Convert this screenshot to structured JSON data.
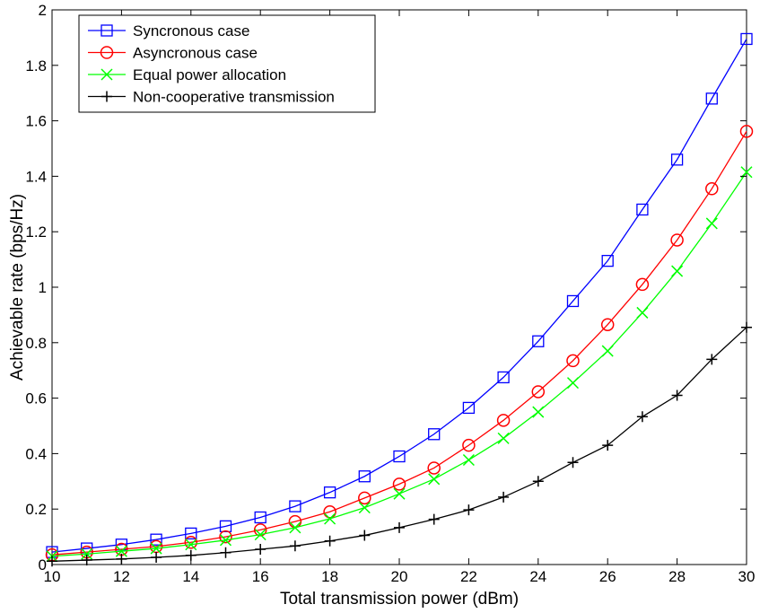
{
  "chart_data": {
    "type": "line",
    "title": "",
    "xlabel": "Total transmission power (dBm)",
    "ylabel": "Achievable rate (bps/Hz)",
    "xlim": [
      10,
      30
    ],
    "ylim": [
      0,
      2
    ],
    "xticks": [
      "10",
      "12",
      "14",
      "16",
      "18",
      "20",
      "22",
      "24",
      "26",
      "28",
      "30"
    ],
    "yticks": [
      "0",
      "0.2",
      "0.4",
      "0.6",
      "0.8",
      "1",
      "1.2",
      "1.4",
      "1.6",
      "1.8",
      "2"
    ],
    "grid": false,
    "legend_position": "top-left",
    "x": [
      10,
      11,
      12,
      13,
      14,
      15,
      16,
      17,
      18,
      19,
      20,
      21,
      22,
      23,
      24,
      25,
      26,
      27,
      28,
      29,
      30
    ],
    "series": [
      {
        "name": "Syncronous case",
        "color": "#0000ff",
        "marker": "square",
        "values": [
          0.045,
          0.058,
          0.072,
          0.09,
          0.112,
          0.138,
          0.17,
          0.21,
          0.26,
          0.318,
          0.39,
          0.47,
          0.565,
          0.675,
          0.805,
          0.95,
          1.095,
          1.28,
          1.46,
          1.68,
          1.895
        ]
      },
      {
        "name": "Asyncronous case",
        "color": "#ff0000",
        "marker": "circle",
        "values": [
          0.035,
          0.045,
          0.055,
          0.065,
          0.08,
          0.1,
          0.125,
          0.155,
          0.19,
          0.24,
          0.29,
          0.348,
          0.43,
          0.52,
          0.623,
          0.735,
          0.865,
          1.01,
          1.17,
          1.355,
          1.562
        ]
      },
      {
        "name": "Equal power allocation",
        "color": "#00ff00",
        "marker": "x",
        "values": [
          0.03,
          0.038,
          0.048,
          0.058,
          0.072,
          0.088,
          0.108,
          0.133,
          0.165,
          0.205,
          0.255,
          0.308,
          0.377,
          0.455,
          0.55,
          0.655,
          0.77,
          0.908,
          1.058,
          1.23,
          1.415
        ]
      },
      {
        "name": "Non-cooperative transmission",
        "color": "#000000",
        "marker": "plus",
        "values": [
          0.012,
          0.016,
          0.02,
          0.026,
          0.033,
          0.043,
          0.055,
          0.067,
          0.085,
          0.105,
          0.133,
          0.163,
          0.197,
          0.243,
          0.3,
          0.368,
          0.43,
          0.533,
          0.61,
          0.74,
          0.855
        ]
      }
    ]
  }
}
